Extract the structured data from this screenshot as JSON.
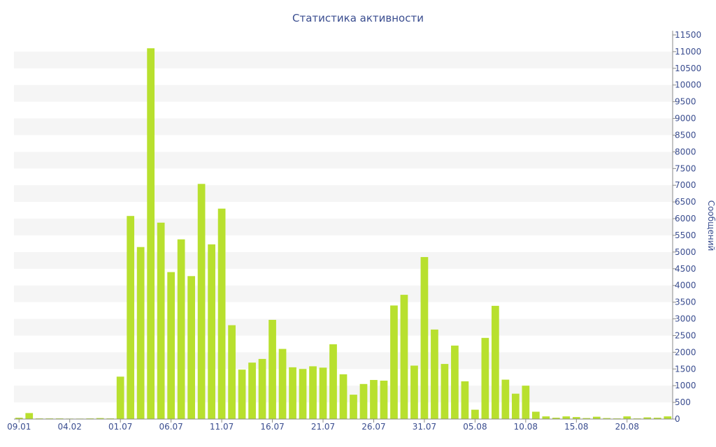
{
  "chart_data": {
    "type": "bar",
    "title": "Статистика активности",
    "xlabel": "",
    "ylabel": "Сообщений",
    "y_axis_side": "right",
    "ylim": [
      0,
      11500
    ],
    "y_ticks": [
      0,
      500,
      1000,
      1500,
      2000,
      2500,
      3000,
      3500,
      4000,
      4500,
      5000,
      5500,
      6000,
      6500,
      7000,
      7500,
      8000,
      8500,
      9000,
      9500,
      10000,
      10500,
      11000,
      11500
    ],
    "x_tick_labels": [
      {
        "index": 0,
        "label": "09.01"
      },
      {
        "index": 5,
        "label": "04.02"
      },
      {
        "index": 10,
        "label": "01.07"
      },
      {
        "index": 15,
        "label": "06.07"
      },
      {
        "index": 20,
        "label": "11.07"
      },
      {
        "index": 25,
        "label": "16.07"
      },
      {
        "index": 30,
        "label": "21.07"
      },
      {
        "index": 35,
        "label": "26.07"
      },
      {
        "index": 40,
        "label": "31.07"
      },
      {
        "index": 45,
        "label": "05.08"
      },
      {
        "index": 50,
        "label": "10.08"
      },
      {
        "index": 55,
        "label": "15.08"
      },
      {
        "index": 60,
        "label": "20.08"
      }
    ],
    "grid": true,
    "bar_color": "#b8e02e",
    "values": [
      40,
      180,
      20,
      20,
      20,
      15,
      15,
      20,
      30,
      20,
      1270,
      6080,
      5150,
      11100,
      5880,
      4400,
      5380,
      4280,
      7040,
      5230,
      6300,
      2810,
      1480,
      1690,
      1800,
      2970,
      2100,
      1550,
      1500,
      1580,
      1540,
      2240,
      1340,
      730,
      1050,
      1170,
      1150,
      3400,
      3720,
      1600,
      4850,
      2680,
      1650,
      2200,
      1130,
      280,
      2430,
      3390,
      1180,
      760,
      1000,
      220,
      80,
      40,
      80,
      60,
      30,
      70,
      30,
      20,
      80,
      20,
      50,
      40,
      80
    ]
  },
  "colors": {
    "bar": "#b8e02e",
    "text": "#3a4d8f",
    "grid_band": "#f5f5f5",
    "axis": "#8a8a8a"
  }
}
